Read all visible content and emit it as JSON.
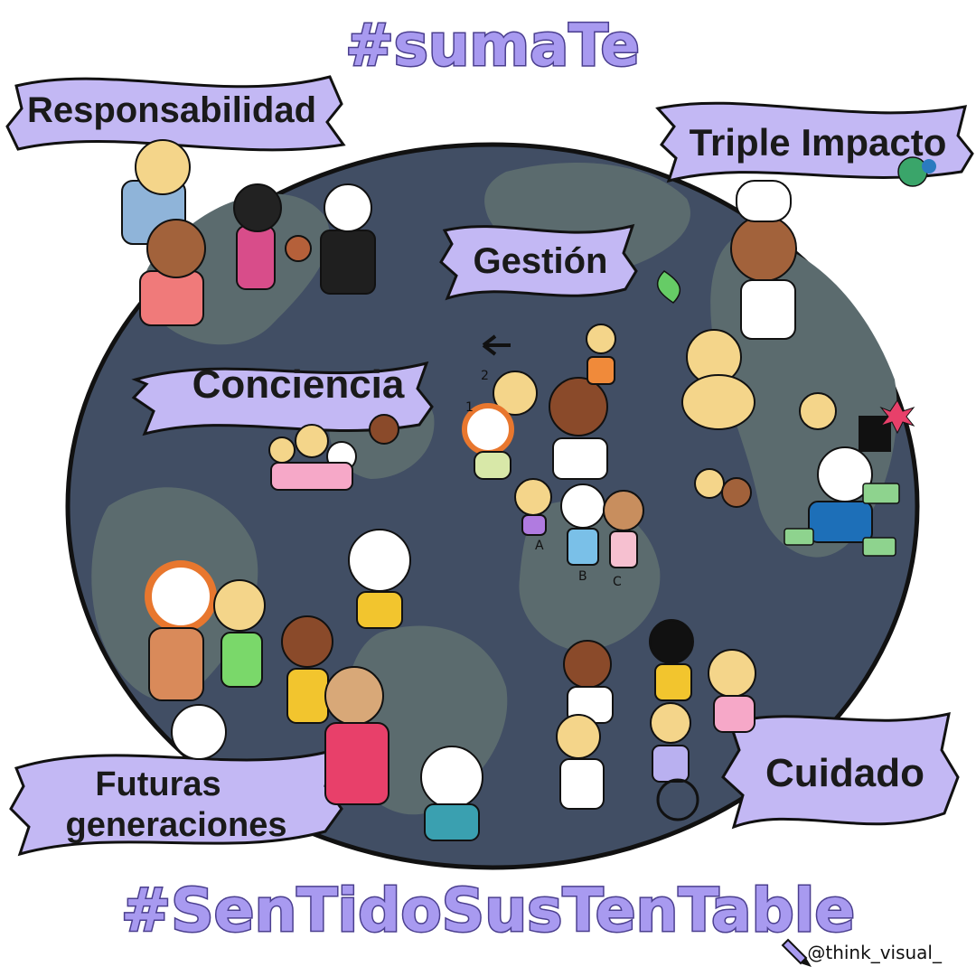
{
  "hashtags": {
    "top": "#sumaTe",
    "bottom": "#SenTidoSusTenTable"
  },
  "banners": {
    "responsabilidad": "Responsabilidad",
    "triple_impacto": "Triple Impacto",
    "gestion": "Gestión",
    "conciencia": "Conciencia",
    "futuras_line1": "Futuras",
    "futuras_line2": "generaciones",
    "cuidado": "Cuidado"
  },
  "group_labels": {
    "one": "1",
    "two": "2",
    "a": "A",
    "b": "B",
    "c": "C"
  },
  "credit": "@think_visual_",
  "colors": {
    "globe_ocean": "#414e64",
    "globe_land": "#5b6b6e",
    "banner_fill": "#c3b8f4",
    "hashtag_fill": "#a89af0",
    "hashtag_stroke": "#4b3f8f"
  },
  "icons": [
    "pencil-icon",
    "leaf-icon",
    "flower-icon",
    "money-icon",
    "wheelchair-icon",
    "arrow-icon"
  ]
}
